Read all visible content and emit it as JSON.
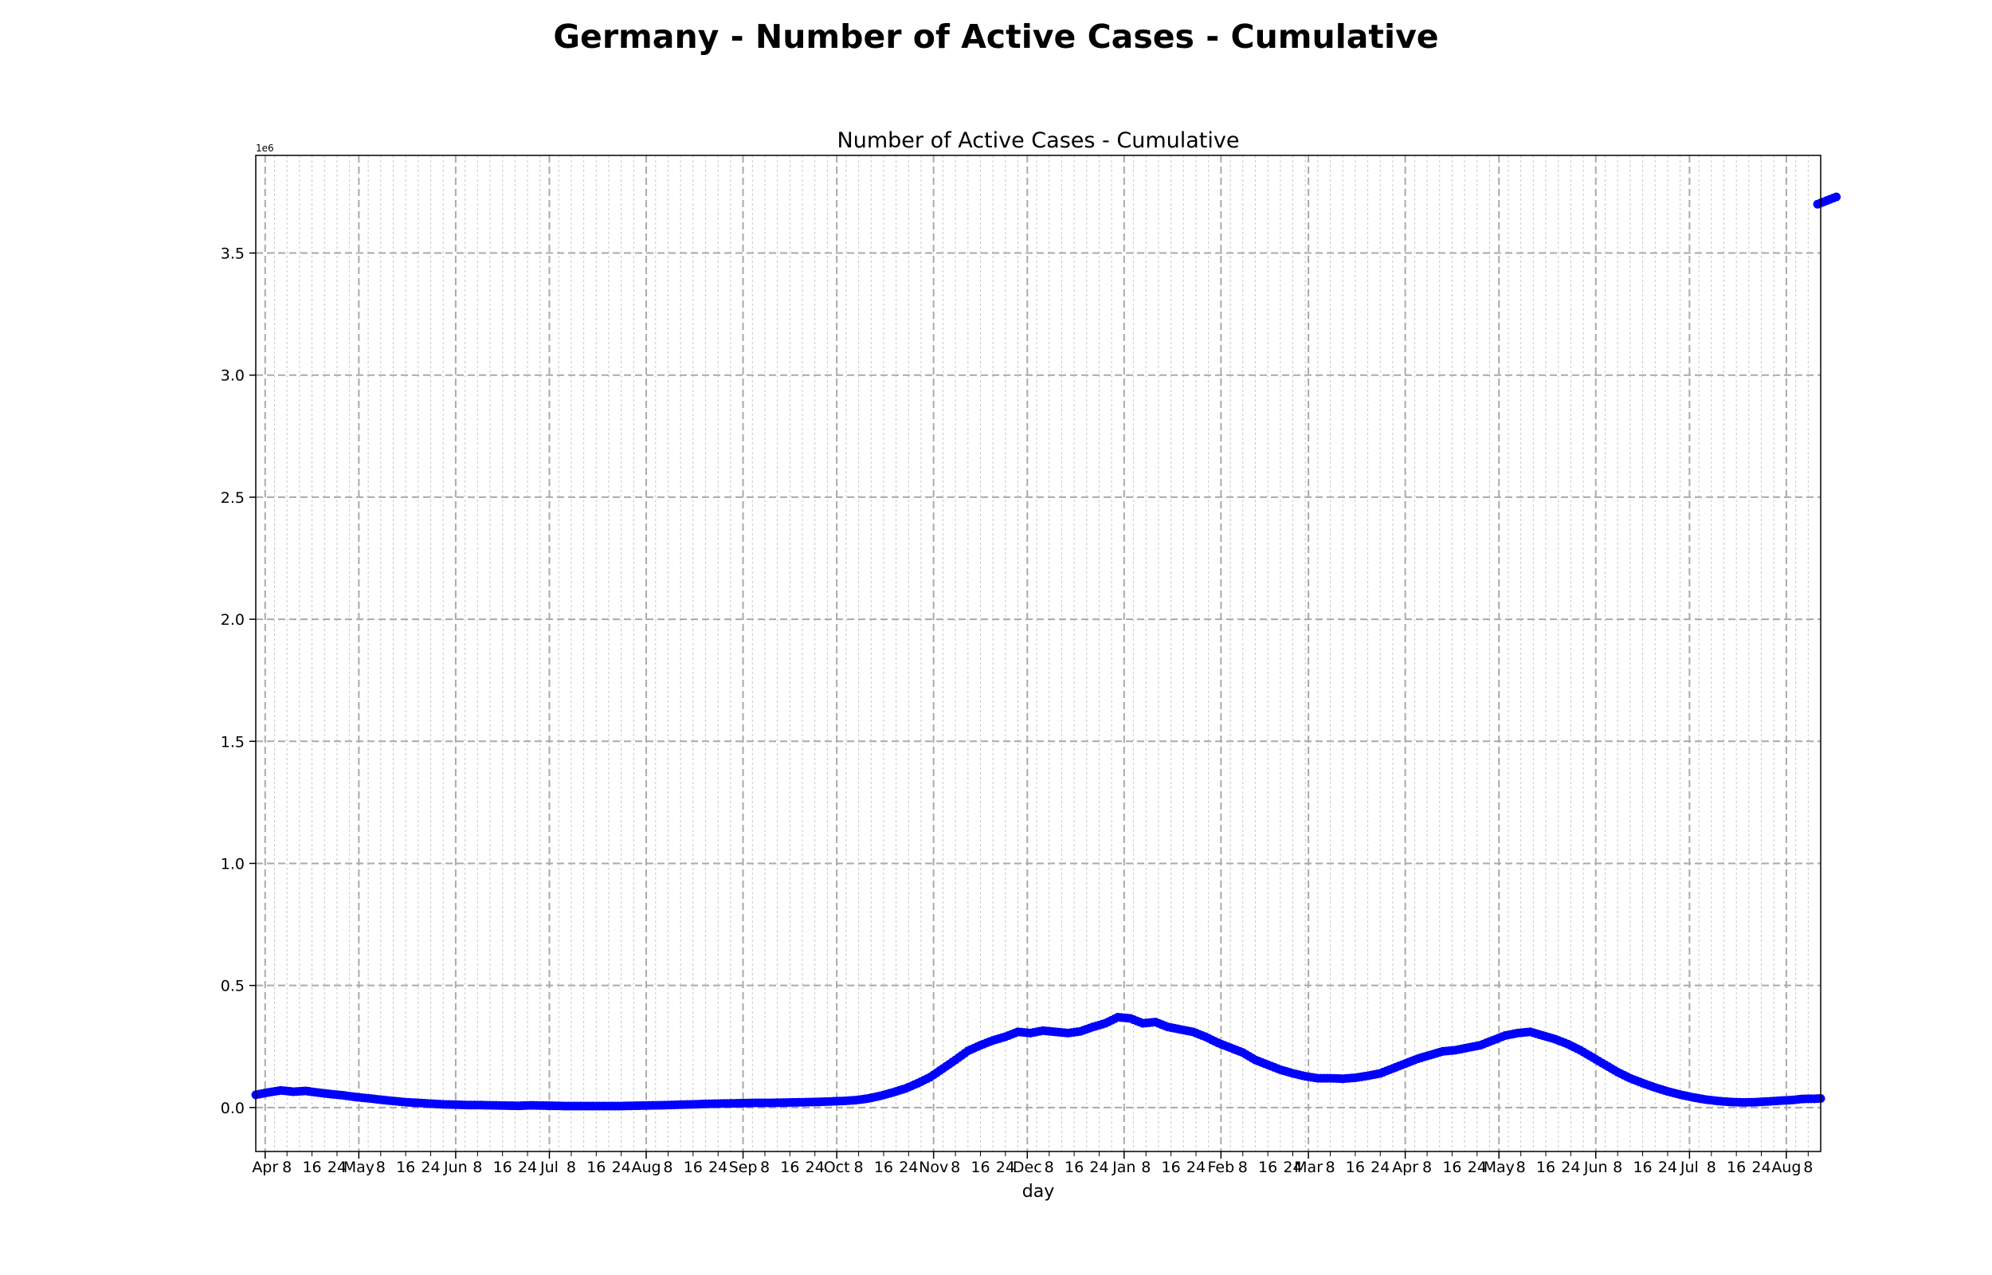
{
  "page": {
    "suptitle": "Germany - Number of Active Cases - Cumulative"
  },
  "chart_data": {
    "type": "scatter",
    "title": "Number of Active Cases - Cumulative",
    "xlabel": "day",
    "ylabel": "",
    "y_offset_label": "1e6",
    "xlim": [
      "2020-03-29",
      "2021-08-12"
    ],
    "ylim": [
      -0.18,
      3.9
    ],
    "y_ticks": [
      0.0,
      0.5,
      1.0,
      1.5,
      2.0,
      2.5,
      3.0,
      3.5
    ],
    "y_tick_labels": [
      "0.0",
      "0.5",
      "1.0",
      "1.5",
      "2.0",
      "2.5",
      "3.0",
      "3.5"
    ],
    "x_major_ticks": [
      {
        "date": "2020-04-01",
        "label": "Apr"
      },
      {
        "date": "2020-05-01",
        "label": "May"
      },
      {
        "date": "2020-06-01",
        "label": "Jun"
      },
      {
        "date": "2020-07-01",
        "label": "Jul"
      },
      {
        "date": "2020-08-01",
        "label": "Aug"
      },
      {
        "date": "2020-09-01",
        "label": "Sep"
      },
      {
        "date": "2020-10-01",
        "label": "Oct"
      },
      {
        "date": "2020-11-01",
        "label": "Nov"
      },
      {
        "date": "2020-12-01",
        "label": "Dec"
      },
      {
        "date": "2021-01-01",
        "label": "Jan"
      },
      {
        "date": "2021-02-01",
        "label": "Feb"
      },
      {
        "date": "2021-03-01",
        "label": "Mar"
      },
      {
        "date": "2021-04-01",
        "label": "Apr"
      },
      {
        "date": "2021-05-01",
        "label": "May"
      },
      {
        "date": "2021-06-01",
        "label": "Jun"
      },
      {
        "date": "2021-07-01",
        "label": "Jul"
      },
      {
        "date": "2021-08-01",
        "label": "Aug"
      }
    ],
    "x_minor_tick_days": [
      8,
      16,
      24
    ],
    "grid": true,
    "marker_color": "#0000ff",
    "series": [
      {
        "values_unit": "1e6",
        "points": [
          [
            "2020-03-29",
            0.052
          ],
          [
            "2020-04-02",
            0.062
          ],
          [
            "2020-04-06",
            0.07
          ],
          [
            "2020-04-10",
            0.065
          ],
          [
            "2020-04-14",
            0.068
          ],
          [
            "2020-04-18",
            0.061
          ],
          [
            "2020-04-22",
            0.055
          ],
          [
            "2020-04-26",
            0.05
          ],
          [
            "2020-04-30",
            0.043
          ],
          [
            "2020-05-04",
            0.038
          ],
          [
            "2020-05-08",
            0.032
          ],
          [
            "2020-05-12",
            0.027
          ],
          [
            "2020-05-16",
            0.022
          ],
          [
            "2020-05-20",
            0.019
          ],
          [
            "2020-05-24",
            0.016
          ],
          [
            "2020-05-28",
            0.013
          ],
          [
            "2020-06-01",
            0.012
          ],
          [
            "2020-06-05",
            0.01
          ],
          [
            "2020-06-09",
            0.01
          ],
          [
            "2020-06-13",
            0.009
          ],
          [
            "2020-06-17",
            0.008
          ],
          [
            "2020-06-21",
            0.007
          ],
          [
            "2020-06-25",
            0.009
          ],
          [
            "2020-06-29",
            0.008
          ],
          [
            "2020-07-03",
            0.007
          ],
          [
            "2020-07-07",
            0.006
          ],
          [
            "2020-07-11",
            0.006
          ],
          [
            "2020-07-15",
            0.006
          ],
          [
            "2020-07-19",
            0.006
          ],
          [
            "2020-07-23",
            0.006
          ],
          [
            "2020-07-27",
            0.007
          ],
          [
            "2020-07-31",
            0.008
          ],
          [
            "2020-08-04",
            0.009
          ],
          [
            "2020-08-08",
            0.01
          ],
          [
            "2020-08-12",
            0.012
          ],
          [
            "2020-08-16",
            0.013
          ],
          [
            "2020-08-20",
            0.015
          ],
          [
            "2020-08-24",
            0.016
          ],
          [
            "2020-08-28",
            0.017
          ],
          [
            "2020-09-01",
            0.018
          ],
          [
            "2020-09-05",
            0.019
          ],
          [
            "2020-09-09",
            0.019
          ],
          [
            "2020-09-13",
            0.02
          ],
          [
            "2020-09-17",
            0.021
          ],
          [
            "2020-09-21",
            0.022
          ],
          [
            "2020-09-25",
            0.023
          ],
          [
            "2020-09-29",
            0.025
          ],
          [
            "2020-10-03",
            0.027
          ],
          [
            "2020-10-07",
            0.03
          ],
          [
            "2020-10-11",
            0.037
          ],
          [
            "2020-10-15",
            0.048
          ],
          [
            "2020-10-19",
            0.062
          ],
          [
            "2020-10-23",
            0.078
          ],
          [
            "2020-10-27",
            0.1
          ],
          [
            "2020-10-31",
            0.125
          ],
          [
            "2020-11-04",
            0.16
          ],
          [
            "2020-11-08",
            0.195
          ],
          [
            "2020-11-12",
            0.232
          ],
          [
            "2020-11-16",
            0.255
          ],
          [
            "2020-11-20",
            0.275
          ],
          [
            "2020-11-24",
            0.29
          ],
          [
            "2020-11-28",
            0.31
          ],
          [
            "2020-12-02",
            0.305
          ],
          [
            "2020-12-06",
            0.315
          ],
          [
            "2020-12-10",
            0.31
          ],
          [
            "2020-12-14",
            0.305
          ],
          [
            "2020-12-18",
            0.312
          ],
          [
            "2020-12-22",
            0.33
          ],
          [
            "2020-12-26",
            0.345
          ],
          [
            "2020-12-30",
            0.37
          ],
          [
            "2021-01-03",
            0.365
          ],
          [
            "2021-01-07",
            0.345
          ],
          [
            "2021-01-11",
            0.35
          ],
          [
            "2021-01-15",
            0.33
          ],
          [
            "2021-01-19",
            0.32
          ],
          [
            "2021-01-23",
            0.31
          ],
          [
            "2021-01-27",
            0.29
          ],
          [
            "2021-01-31",
            0.265
          ],
          [
            "2021-02-04",
            0.245
          ],
          [
            "2021-02-08",
            0.225
          ],
          [
            "2021-02-12",
            0.195
          ],
          [
            "2021-02-16",
            0.175
          ],
          [
            "2021-02-20",
            0.155
          ],
          [
            "2021-02-24",
            0.14
          ],
          [
            "2021-02-28",
            0.128
          ],
          [
            "2021-03-04",
            0.12
          ],
          [
            "2021-03-08",
            0.12
          ],
          [
            "2021-03-12",
            0.118
          ],
          [
            "2021-03-16",
            0.122
          ],
          [
            "2021-03-20",
            0.13
          ],
          [
            "2021-03-24",
            0.14
          ],
          [
            "2021-03-28",
            0.16
          ],
          [
            "2021-04-01",
            0.18
          ],
          [
            "2021-04-05",
            0.2
          ],
          [
            "2021-04-09",
            0.215
          ],
          [
            "2021-04-13",
            0.23
          ],
          [
            "2021-04-17",
            0.235
          ],
          [
            "2021-04-21",
            0.245
          ],
          [
            "2021-04-25",
            0.255
          ],
          [
            "2021-04-29",
            0.275
          ],
          [
            "2021-05-03",
            0.295
          ],
          [
            "2021-05-07",
            0.305
          ],
          [
            "2021-05-11",
            0.31
          ],
          [
            "2021-05-15",
            0.295
          ],
          [
            "2021-05-19",
            0.28
          ],
          [
            "2021-05-23",
            0.26
          ],
          [
            "2021-05-27",
            0.235
          ],
          [
            "2021-05-31",
            0.205
          ],
          [
            "2021-06-04",
            0.175
          ],
          [
            "2021-06-08",
            0.145
          ],
          [
            "2021-06-12",
            0.12
          ],
          [
            "2021-06-16",
            0.1
          ],
          [
            "2021-06-20",
            0.082
          ],
          [
            "2021-06-24",
            0.066
          ],
          [
            "2021-06-28",
            0.053
          ],
          [
            "2021-07-02",
            0.042
          ],
          [
            "2021-07-06",
            0.033
          ],
          [
            "2021-07-10",
            0.027
          ],
          [
            "2021-07-14",
            0.023
          ],
          [
            "2021-07-18",
            0.021
          ],
          [
            "2021-07-22",
            0.022
          ],
          [
            "2021-07-26",
            0.025
          ],
          [
            "2021-07-30",
            0.028
          ],
          [
            "2021-08-03",
            0.031
          ],
          [
            "2021-08-06",
            0.035
          ],
          [
            "2021-08-08",
            0.036
          ],
          [
            "2021-08-10",
            0.036
          ],
          [
            "2021-08-12",
            0.037
          ]
        ],
        "outlier_points": [
          [
            "2021-08-11",
            3.7
          ],
          [
            "2021-08-13",
            3.71
          ],
          [
            "2021-08-15",
            3.72
          ],
          [
            "2021-08-17",
            3.73
          ]
        ]
      }
    ]
  }
}
